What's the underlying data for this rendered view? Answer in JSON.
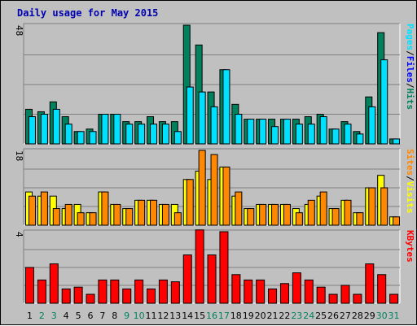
{
  "title": "Daily usage for May 2015",
  "colors": {
    "hits": "#00805c",
    "files": "#00e0ff",
    "pages": "#00e0ff",
    "visits": "#ffff00",
    "sites": "#ff8800",
    "kbytes": "#ff0000",
    "weekday_label": "#000000",
    "weekend_label": "#00805c",
    "title": "#0000b0",
    "plot_bg": "#c0c0c0"
  },
  "chart_data": [
    {
      "type": "bar",
      "panel": "hits-files-pages",
      "y_tick_label": "48",
      "ylim": [
        0,
        48
      ],
      "legend": [
        {
          "text": "Pages",
          "color": "#00e0ff"
        },
        {
          "text": "Files",
          "color": "#0000ff"
        },
        {
          "text": "Hits",
          "color": "#00805c"
        }
      ],
      "legend_separators": [
        "/",
        "/"
      ],
      "categories": [
        "1",
        "2",
        "3",
        "4",
        "5",
        "6",
        "7",
        "8",
        "9",
        "10",
        "11",
        "12",
        "13",
        "14",
        "15",
        "16",
        "17",
        "18",
        "19",
        "20",
        "21",
        "22",
        "23",
        "24",
        "25",
        "26",
        "27",
        "28",
        "29",
        "30",
        "31"
      ],
      "weekend_days": [
        2,
        3,
        9,
        10,
        16,
        17,
        23,
        24,
        30,
        31
      ],
      "series": [
        {
          "key": "hits",
          "values": [
            14,
            13,
            17,
            11,
            5,
            6,
            12,
            12,
            9,
            9,
            11,
            9,
            9,
            48,
            40,
            21,
            30,
            16,
            10,
            10,
            10,
            10,
            10,
            11,
            12,
            6,
            9,
            5,
            19,
            45,
            2
          ]
        },
        {
          "key": "files",
          "values": [
            11,
            12,
            14,
            8,
            5,
            5,
            12,
            12,
            8,
            8,
            8,
            8,
            5,
            23,
            21,
            15,
            30,
            12,
            10,
            10,
            7,
            10,
            8,
            8,
            11,
            6,
            8,
            4,
            15,
            34,
            2
          ]
        }
      ]
    },
    {
      "type": "bar",
      "panel": "visits-sites",
      "y_tick_label": "18",
      "ylim": [
        0,
        18
      ],
      "legend": [
        {
          "text": "Sites",
          "color": "#ff8800"
        },
        {
          "text": "Visits",
          "color": "#ffff00"
        }
      ],
      "legend_separators": [
        "/"
      ],
      "categories": [
        "1",
        "2",
        "3",
        "4",
        "5",
        "6",
        "7",
        "8",
        "9",
        "10",
        "11",
        "12",
        "13",
        "14",
        "15",
        "16",
        "17",
        "18",
        "19",
        "20",
        "21",
        "22",
        "23",
        "24",
        "25",
        "26",
        "27",
        "28",
        "29",
        "30",
        "31"
      ],
      "series": [
        {
          "key": "visits",
          "values": [
            8,
            7,
            7,
            4,
            5,
            3,
            8,
            5,
            4,
            6,
            6,
            5,
            5,
            11,
            13,
            11,
            14,
            7,
            4,
            5,
            5,
            5,
            4,
            5,
            7,
            4,
            6,
            3,
            9,
            12,
            2
          ]
        },
        {
          "key": "sites",
          "values": [
            7,
            8,
            4,
            5,
            3,
            3,
            8,
            5,
            4,
            6,
            6,
            5,
            3,
            11,
            18,
            17,
            14,
            8,
            4,
            5,
            5,
            5,
            3,
            6,
            8,
            4,
            6,
            3,
            9,
            9,
            2
          ]
        }
      ]
    },
    {
      "type": "bar",
      "panel": "kbytes",
      "y_tick_label": "4",
      "ylim": [
        0,
        4
      ],
      "legend": [
        {
          "text": "KBytes",
          "color": "#ff0000"
        }
      ],
      "legend_separators": [],
      "categories": [
        "1",
        "2",
        "3",
        "4",
        "5",
        "6",
        "7",
        "8",
        "9",
        "10",
        "11",
        "12",
        "13",
        "14",
        "15",
        "16",
        "17",
        "18",
        "19",
        "20",
        "21",
        "22",
        "23",
        "24",
        "25",
        "26",
        "27",
        "28",
        "29",
        "30",
        "31"
      ],
      "series": [
        {
          "key": "kbytes",
          "values": [
            2.0,
            1.3,
            2.2,
            0.8,
            0.9,
            0.5,
            1.3,
            1.3,
            0.8,
            1.3,
            0.8,
            1.3,
            1.2,
            2.7,
            4.1,
            2.7,
            4.0,
            1.6,
            1.3,
            1.3,
            0.8,
            1.1,
            1.7,
            1.3,
            0.9,
            0.5,
            1.0,
            0.5,
            2.2,
            1.6,
            0.5
          ]
        }
      ]
    }
  ]
}
